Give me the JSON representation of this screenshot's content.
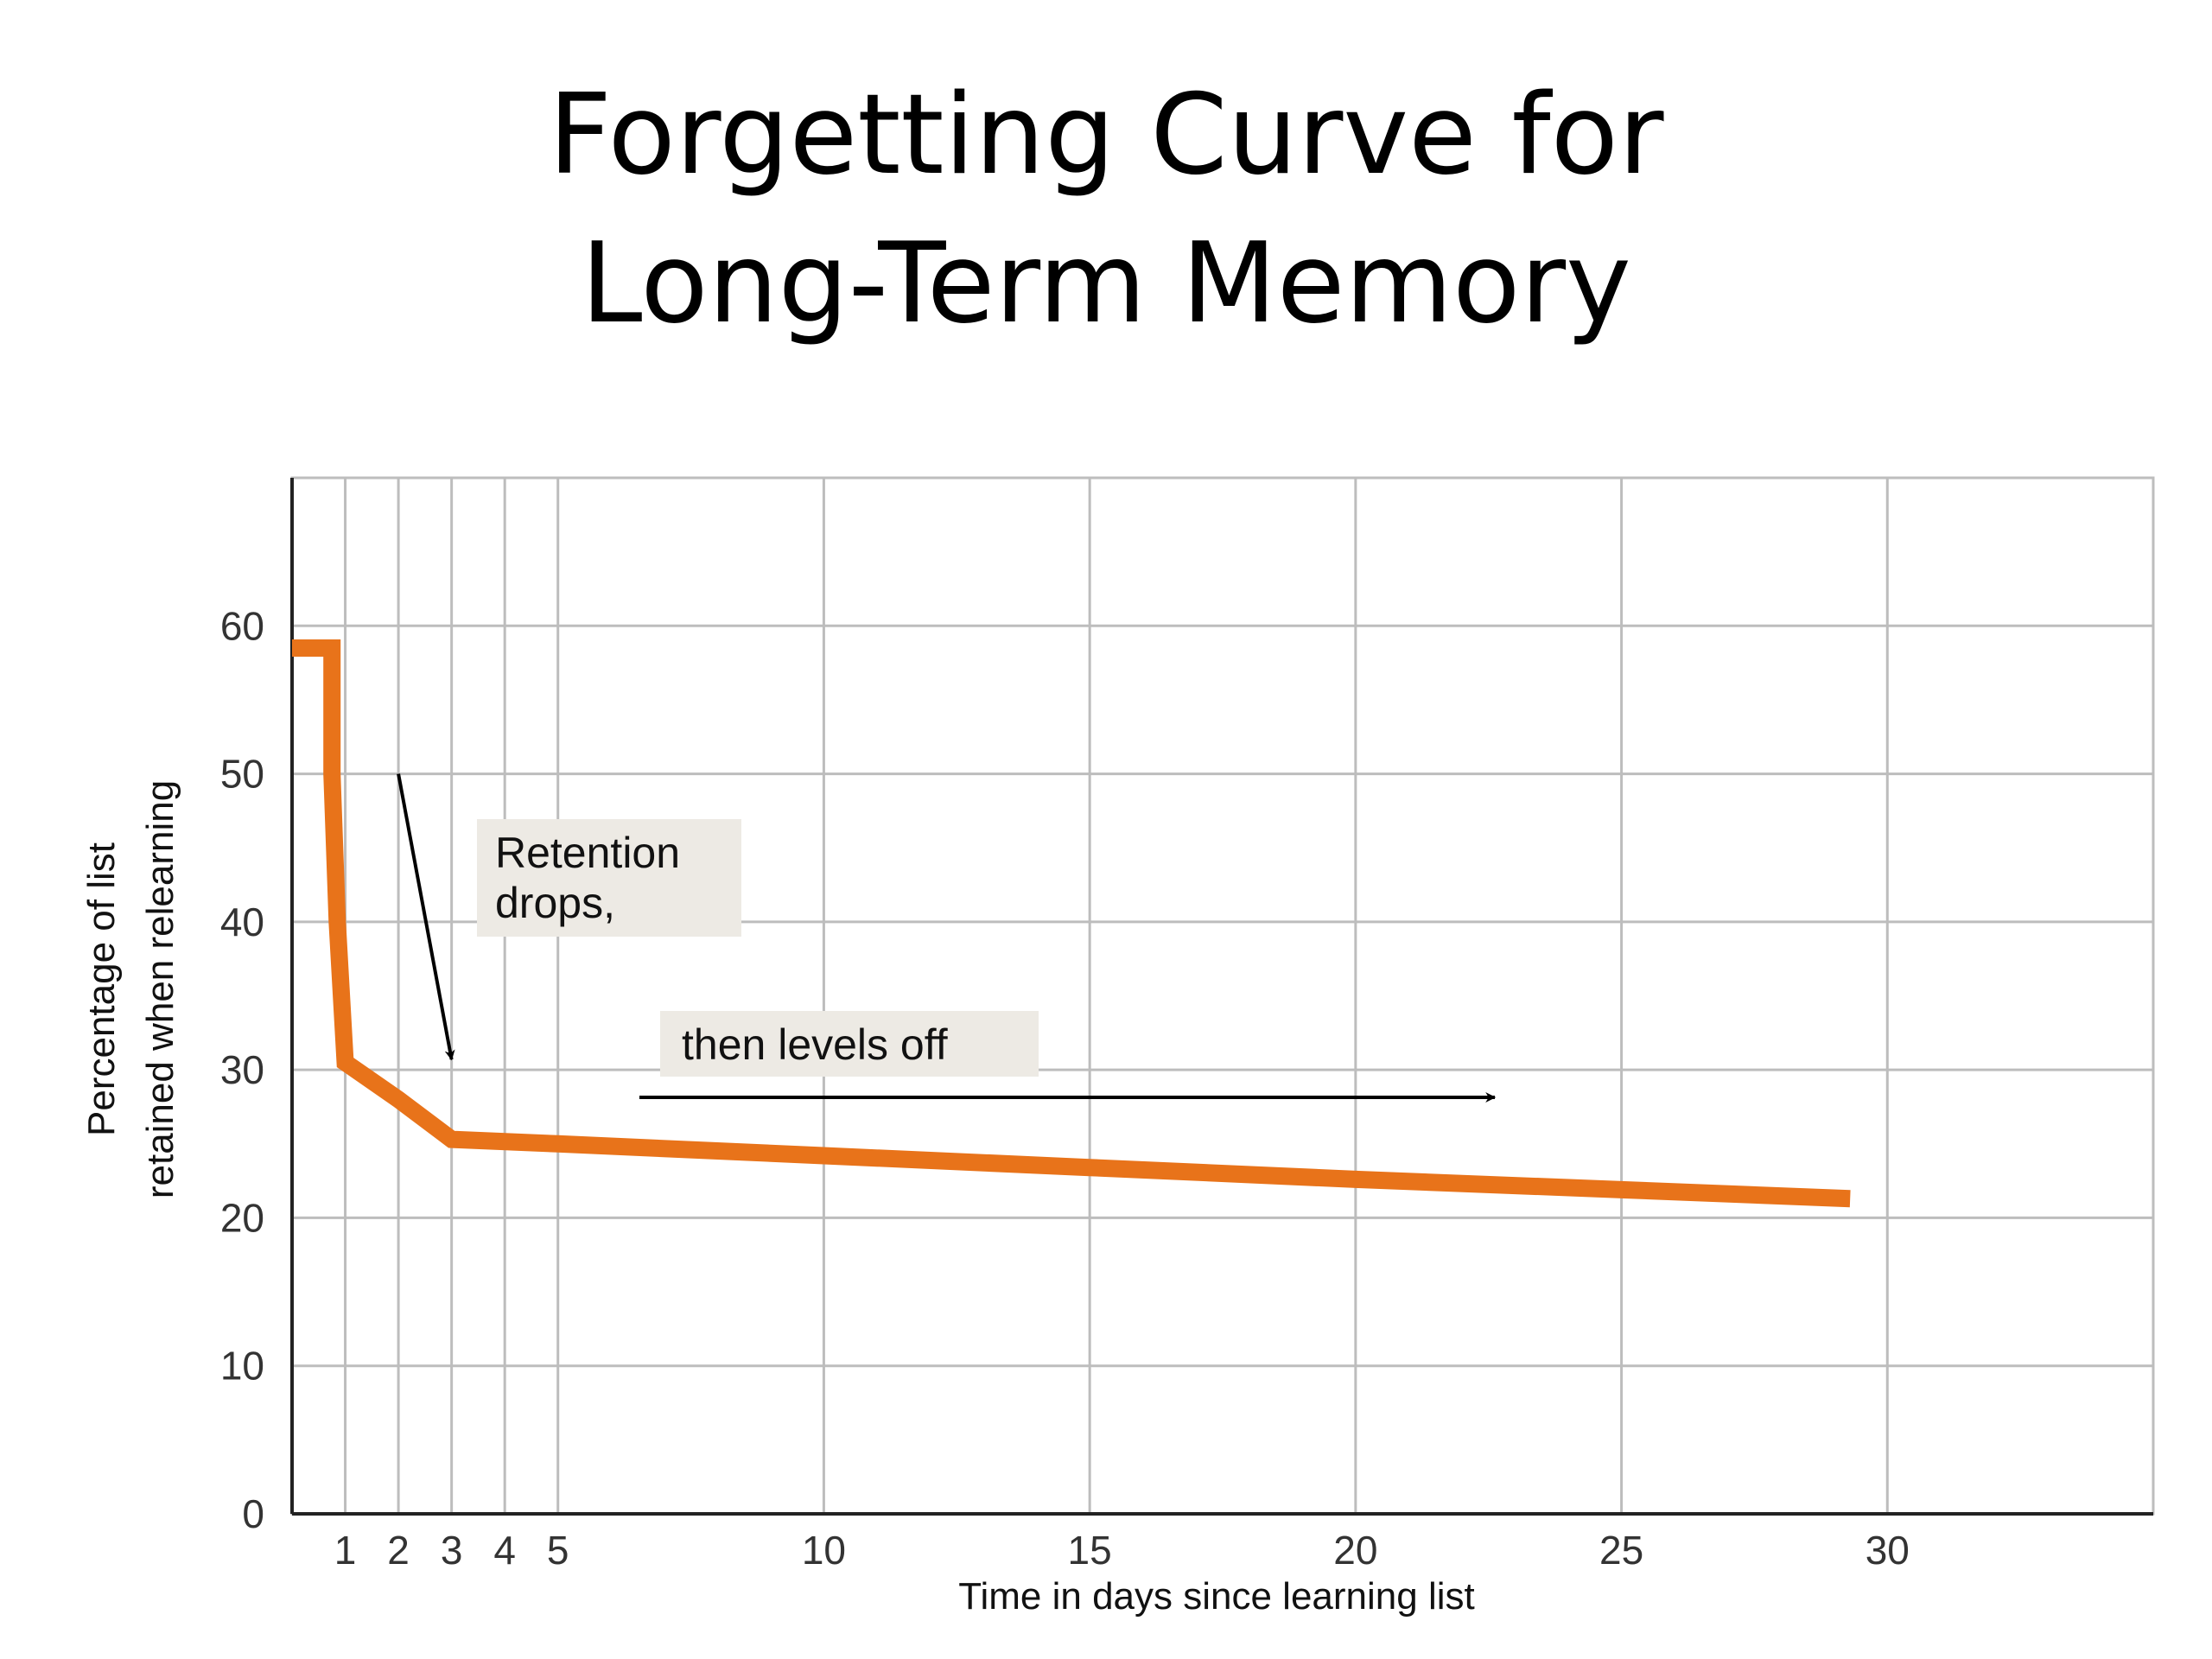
{
  "slide": {
    "title_line_1": "Forgetting Curve for",
    "title_line_2": "Long-Term Memory"
  },
  "chart_data": {
    "type": "line",
    "xlabel": "Time in days since learning list",
    "ylabel_line_1": "Percentage of list",
    "ylabel_line_2": "retained when relearning",
    "xlim": [
      0,
      35
    ],
    "ylim": [
      0,
      70
    ],
    "x_ticks": [
      1,
      2,
      3,
      4,
      5,
      10,
      15,
      20,
      25,
      30
    ],
    "y_ticks": [
      0,
      10,
      20,
      30,
      40,
      50,
      60
    ],
    "grid": true,
    "line_color": "#E8731A",
    "series": [
      {
        "x": [
          0,
          0.75,
          0.75,
          0.85,
          1,
          2,
          3,
          5,
          10,
          15,
          20,
          25,
          29.3
        ],
        "values": [
          58.5,
          58.5,
          50,
          40,
          30.5,
          28,
          25.3,
          25,
          24.2,
          23.4,
          22.6,
          21.9,
          21.3
        ]
      }
    ],
    "annotations": [
      {
        "name": "annotation-retention-drops",
        "lines": [
          "Retention",
          "drops,"
        ],
        "background": "#EDEAE4"
      },
      {
        "name": "annotation-levels-off",
        "lines": [
          "then levels off"
        ],
        "background": "#EDEAE4"
      }
    ]
  }
}
